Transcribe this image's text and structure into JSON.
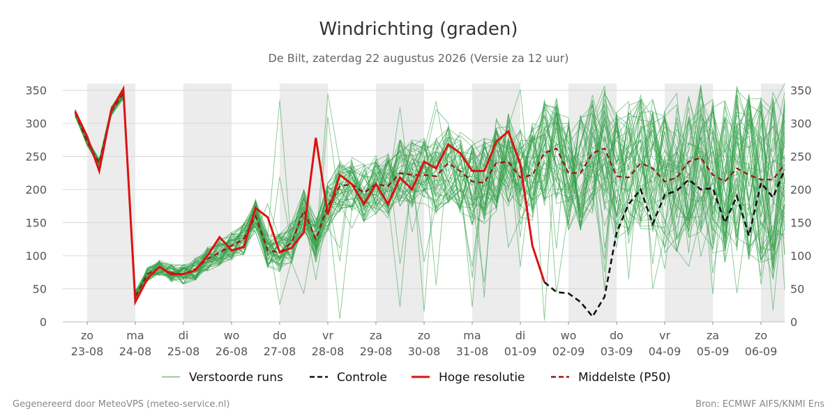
{
  "chart_data": {
    "type": "line",
    "title": "Windrichting (graden)",
    "subtitle": "De Bilt, zaterdag 22 augustus 2026 (Versie za 12 uur)",
    "x_day_labels": [
      {
        "dow": "zo",
        "date": "23-08"
      },
      {
        "dow": "ma",
        "date": "24-08"
      },
      {
        "dow": "di",
        "date": "25-08"
      },
      {
        "dow": "wo",
        "date": "26-08"
      },
      {
        "dow": "do",
        "date": "27-08"
      },
      {
        "dow": "vr",
        "date": "28-08"
      },
      {
        "dow": "za",
        "date": "29-08"
      },
      {
        "dow": "zo",
        "date": "30-08"
      },
      {
        "dow": "ma",
        "date": "31-08"
      },
      {
        "dow": "di",
        "date": "01-09"
      },
      {
        "dow": "wo",
        "date": "02-09"
      },
      {
        "dow": "do",
        "date": "03-09"
      },
      {
        "dow": "vr",
        "date": "04-09"
      },
      {
        "dow": "za",
        "date": "05-09"
      },
      {
        "dow": "zo",
        "date": "06-09"
      }
    ],
    "x_range_days": [
      -0.2,
      14.5
    ],
    "y_range": [
      0,
      360
    ],
    "y_ticks": [
      0,
      50,
      100,
      150,
      200,
      250,
      300,
      350
    ],
    "shaded_day_bands": [
      [
        0,
        1
      ],
      [
        2,
        3
      ],
      [
        4,
        5
      ],
      [
        6,
        7
      ],
      [
        8,
        9
      ],
      [
        10,
        11
      ],
      [
        12,
        13
      ],
      [
        14,
        14.5
      ]
    ],
    "legend_placement": "bottom",
    "series": [
      {
        "name": "Hoge resolutie",
        "color": "#dd1111",
        "style": "solid",
        "x": [
          -0.25,
          0,
          0.25,
          0.5,
          0.75,
          1,
          1.25,
          1.5,
          1.75,
          2,
          2.25,
          2.5,
          2.75,
          3,
          3.25,
          3.5,
          3.75,
          4,
          4.25,
          4.5,
          4.75,
          5,
          5.25,
          5.5,
          5.75,
          6,
          6.25,
          6.5,
          6.75,
          7,
          7.25,
          7.5,
          7.75,
          8,
          8.25,
          8.5,
          8.75,
          9,
          9.25,
          9.5
        ],
        "values": [
          318,
          280,
          228,
          320,
          352,
          30,
          65,
          83,
          72,
          72,
          78,
          100,
          128,
          108,
          113,
          172,
          158,
          105,
          112,
          135,
          278,
          162,
          222,
          208,
          178,
          208,
          178,
          218,
          200,
          242,
          232,
          268,
          255,
          228,
          228,
          272,
          288,
          238,
          115,
          60
        ]
      },
      {
        "name": "Controle",
        "color": "#111111",
        "style": "dashed",
        "x": [
          9.5,
          9.75,
          10,
          10.25,
          10.5,
          10.75,
          11,
          11.25,
          11.5,
          11.75,
          12,
          12.25,
          12.5,
          12.75,
          13,
          13.25,
          13.5,
          13.75,
          14,
          14.25,
          14.5
        ],
        "values": [
          60,
          45,
          43,
          30,
          8,
          38,
          135,
          178,
          200,
          148,
          192,
          198,
          215,
          200,
          202,
          150,
          190,
          130,
          210,
          188,
          230
        ]
      },
      {
        "name": "Middelste (P50)",
        "color": "#991111",
        "style": "dashed",
        "x": [
          -0.25,
          0,
          0.25,
          0.5,
          0.75,
          1,
          1.25,
          1.5,
          1.75,
          2,
          2.25,
          2.5,
          2.75,
          3,
          3.25,
          3.5,
          3.75,
          4,
          4.25,
          4.5,
          4.75,
          5,
          5.25,
          5.5,
          5.75,
          6,
          6.25,
          6.5,
          6.75,
          7,
          7.25,
          7.5,
          7.75,
          8,
          8.25,
          8.5,
          8.75,
          9,
          9.25,
          9.5,
          9.75,
          10,
          10.25,
          10.5,
          10.75,
          11,
          11.25,
          11.5,
          11.75,
          12,
          12.25,
          12.5,
          12.75,
          13,
          13.25,
          13.5,
          13.75,
          14,
          14.25,
          14.5
        ],
        "values": [
          316,
          272,
          240,
          318,
          345,
          38,
          72,
          82,
          74,
          72,
          80,
          95,
          105,
          115,
          125,
          160,
          108,
          105,
          120,
          168,
          125,
          175,
          205,
          208,
          195,
          208,
          205,
          225,
          222,
          222,
          220,
          240,
          228,
          212,
          210,
          240,
          242,
          218,
          222,
          255,
          262,
          225,
          225,
          255,
          262,
          220,
          218,
          240,
          232,
          212,
          218,
          242,
          248,
          222,
          212,
          232,
          222,
          215,
          215,
          238
        ]
      },
      {
        "name": "Verstoorde runs",
        "color": "#33a04a",
        "style": "thin",
        "ensemble_members": 50
      }
    ],
    "legend": [
      {
        "label": "Verstoorde runs",
        "color": "#33a04a",
        "style": "thin"
      },
      {
        "label": "Controle",
        "color": "#111111",
        "style": "dashed"
      },
      {
        "label": "Hoge resolutie",
        "color": "#dd1111",
        "style": "solid"
      },
      {
        "label": "Middelste (P50)",
        "color": "#991111",
        "style": "dashed"
      }
    ]
  },
  "footer": {
    "left": "Gegenereerd door MeteoVPS (meteo-service.nl)",
    "right": "Bron: ECMWF AIFS/KNMI Ens"
  }
}
